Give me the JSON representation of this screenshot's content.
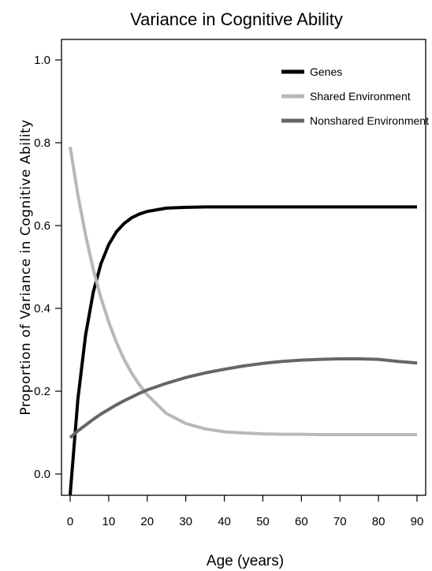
{
  "chart_data": {
    "type": "line",
    "title": "Variance in Cognitive Ability",
    "xlabel": "Age (years)",
    "ylabel": "Proportion of Variance in Cognitive Ability",
    "xlim": [
      0,
      90
    ],
    "ylim": [
      -0.05,
      1.05
    ],
    "xticks": [
      "0",
      "10",
      "20",
      "30",
      "40",
      "50",
      "60",
      "70",
      "80",
      "90"
    ],
    "yticks": [
      "0.0",
      "0.2",
      "0.4",
      "0.6",
      "0.8",
      "1.0"
    ],
    "grid": false,
    "legend_position": "top-right",
    "x": [
      0,
      2,
      4,
      6,
      8,
      10,
      12,
      14,
      16,
      18,
      20,
      25,
      30,
      35,
      40,
      45,
      50,
      55,
      60,
      65,
      70,
      75,
      80,
      85,
      90
    ],
    "series": [
      {
        "name": "Genes",
        "color": "#000000",
        "values": [
          -0.05,
          0.181,
          0.336,
          0.439,
          0.508,
          0.554,
          0.585,
          0.605,
          0.619,
          0.628,
          0.634,
          0.642,
          0.644,
          0.645,
          0.645,
          0.645,
          0.645,
          0.645,
          0.645,
          0.645,
          0.645,
          0.645,
          0.645,
          0.645,
          0.645
        ]
      },
      {
        "name": "Shared Environment",
        "color": "#b8b8b8",
        "values": [
          0.79,
          0.674,
          0.577,
          0.494,
          0.425,
          0.367,
          0.318,
          0.277,
          0.243,
          0.215,
          0.191,
          0.146,
          0.122,
          0.109,
          0.102,
          0.099,
          0.097,
          0.096,
          0.096,
          0.095,
          0.095,
          0.095,
          0.095,
          0.095,
          0.095
        ]
      },
      {
        "name": "Nonshared Environment",
        "color": "#666666",
        "values": [
          0.088,
          0.104,
          0.118,
          0.132,
          0.145,
          0.156,
          0.167,
          0.177,
          0.186,
          0.195,
          0.203,
          0.219,
          0.233,
          0.244,
          0.253,
          0.261,
          0.267,
          0.272,
          0.275,
          0.277,
          0.278,
          0.278,
          0.277,
          0.272,
          0.268
        ]
      }
    ]
  }
}
